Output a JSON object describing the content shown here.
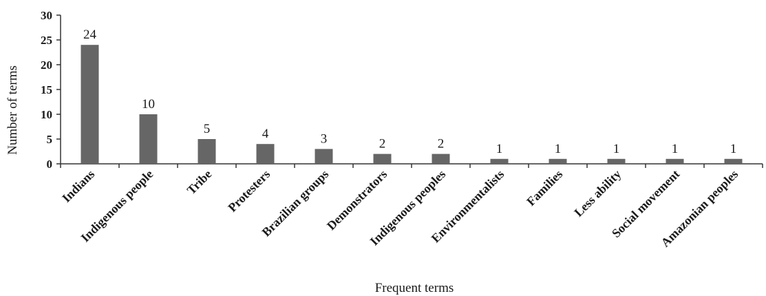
{
  "chart_data": {
    "type": "bar",
    "categories": [
      "Indians",
      "Indigenous people",
      "Tribe",
      "Protesters",
      "Brazilian groups",
      "Demonstrators",
      "Indigenous peoples",
      "Environmentalists",
      "Families",
      "Less ability",
      "Social movement",
      "Amazonian peoples"
    ],
    "values": [
      24,
      10,
      5,
      4,
      3,
      2,
      2,
      1,
      1,
      1,
      1,
      1
    ],
    "data_labels": [
      "24",
      "10",
      "5",
      "4",
      "3",
      "2",
      "2",
      "1",
      "1",
      "1",
      "1",
      "1"
    ],
    "xlabel": "Frequent terms",
    "ylabel": "Number of terms",
    "ylim": [
      0,
      30
    ],
    "yticks": [
      "0",
      "5",
      "10",
      "15",
      "20",
      "25",
      "30"
    ],
    "grid": false,
    "legend": "none",
    "bar_color": "#666666",
    "axis_color": "#333333"
  }
}
